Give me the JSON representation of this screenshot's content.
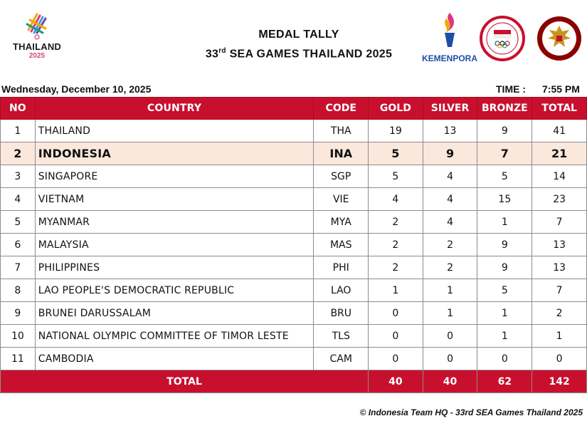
{
  "header": {
    "left_logo_text": "THAILAND",
    "left_logo_year": "2025",
    "title_line1": "MEDAL TALLY",
    "title_line2_prefix": "33",
    "title_line2_sup": "rd",
    "title_line2_suffix": " SEA GAMES THAILAND 2025",
    "kemenpora_text": "KEMENPORA"
  },
  "dateline": {
    "date": "Wednesday, December 10, 2025",
    "time_label": "TIME :",
    "time_value": "7:55 PM"
  },
  "table": {
    "columns": [
      "NO",
      "COUNTRY",
      "CODE",
      "GOLD",
      "SILVER",
      "BRONZE",
      "TOTAL"
    ],
    "highlight_code": "INA",
    "rows": [
      {
        "no": "1",
        "country": "THAILAND",
        "code": "THA",
        "gold": "19",
        "silver": "13",
        "bronze": "9",
        "total": "41"
      },
      {
        "no": "2",
        "country": "INDONESIA",
        "code": "INA",
        "gold": "5",
        "silver": "9",
        "bronze": "7",
        "total": "21"
      },
      {
        "no": "3",
        "country": "SINGAPORE",
        "code": "SGP",
        "gold": "5",
        "silver": "4",
        "bronze": "5",
        "total": "14"
      },
      {
        "no": "4",
        "country": "VIETNAM",
        "code": "VIE",
        "gold": "4",
        "silver": "4",
        "bronze": "15",
        "total": "23"
      },
      {
        "no": "5",
        "country": "MYANMAR",
        "code": "MYA",
        "gold": "2",
        "silver": "4",
        "bronze": "1",
        "total": "7"
      },
      {
        "no": "6",
        "country": "MALAYSIA",
        "code": "MAS",
        "gold": "2",
        "silver": "2",
        "bronze": "9",
        "total": "13"
      },
      {
        "no": "7",
        "country": "PHILIPPINES",
        "code": "PHI",
        "gold": "2",
        "silver": "2",
        "bronze": "9",
        "total": "13"
      },
      {
        "no": "8",
        "country": "LAO PEOPLE'S DEMOCRATIC REPUBLIC",
        "code": "LAO",
        "gold": "1",
        "silver": "1",
        "bronze": "5",
        "total": "7"
      },
      {
        "no": "9",
        "country": "BRUNEI DARUSSALAM",
        "code": "BRU",
        "gold": "0",
        "silver": "1",
        "bronze": "1",
        "total": "2"
      },
      {
        "no": "10",
        "country": "NATIONAL OLYMPIC COMMITTEE OF TIMOR LESTE",
        "code": "TLS",
        "gold": "0",
        "silver": "0",
        "bronze": "1",
        "total": "1"
      },
      {
        "no": "11",
        "country": "CAMBODIA",
        "code": "CAM",
        "gold": "0",
        "silver": "0",
        "bronze": "0",
        "total": "0"
      }
    ],
    "totals": {
      "label": "TOTAL",
      "gold": "40",
      "silver": "40",
      "bronze": "62",
      "total": "142"
    }
  },
  "footer": "© Indonesia Team HQ - 33rd SEA Games Thailand 2025",
  "colors": {
    "header_red": "#c8102e",
    "highlight_row": "#fbe8dd",
    "kemenpora_blue": "#1f4ea8"
  }
}
